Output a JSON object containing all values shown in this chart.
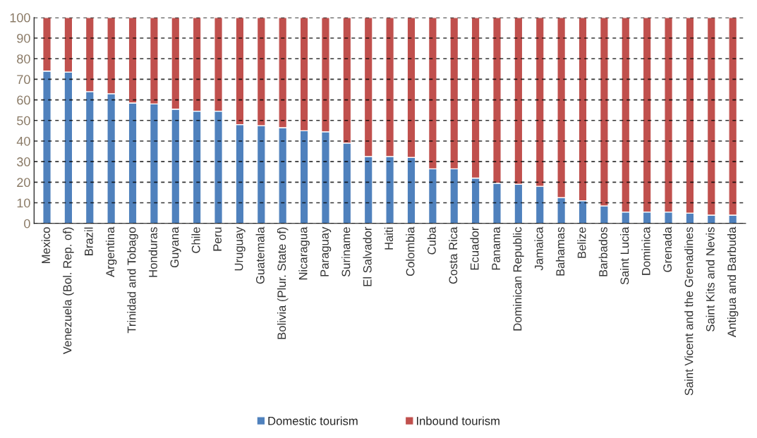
{
  "chart_data": {
    "type": "bar",
    "stacked": true,
    "categories": [
      "Mexico",
      "Venezuela (Bol. Rep. of)",
      "Brazil",
      "Argentina",
      "Trinidad and Tobago",
      "Honduras",
      "Guyana",
      "Chile",
      "Peru",
      "Uruguay",
      "Guatemala",
      "Bolivia (Plur. State of)",
      "Nicaragua",
      "Paraguay",
      "Suriname",
      "El Salvador",
      "Haiti",
      "Colombia",
      "Cuba",
      "Costa Rica",
      "Ecuador",
      "Panama",
      "Dominican Republic",
      "Jamaica",
      "Bahamas",
      "Belize",
      "Barbados",
      "Saint Lucia",
      "Dominica",
      "Grenada",
      "Saint Vicent and the Grenadines",
      "Saint Kits and Nevis",
      "Antigua and Barbuda"
    ],
    "series": [
      {
        "name": "Domestic tourism",
        "color": "#4f81bd",
        "values": [
          74,
          73.5,
          64,
          63,
          58.5,
          58,
          55.5,
          54.5,
          54.5,
          48,
          47.5,
          46.5,
          45,
          44.5,
          39,
          32.5,
          32.5,
          32,
          26.5,
          26.5,
          22,
          19.5,
          19,
          18,
          12.5,
          11,
          8.5,
          5.5,
          5.5,
          5.5,
          5,
          4,
          4
        ]
      },
      {
        "name": "Inbound tourism",
        "color": "#c0504d",
        "values": [
          26,
          26.5,
          36,
          37,
          41.5,
          42,
          44.5,
          45.5,
          45.5,
          52,
          52.5,
          53.5,
          55,
          55.5,
          61,
          67.5,
          67.5,
          68,
          73.5,
          73.5,
          78,
          80.5,
          81,
          82,
          87.5,
          89,
          91.5,
          94.5,
          94.5,
          94.5,
          95,
          96,
          96
        ]
      }
    ],
    "ylim": [
      0,
      100
    ],
    "yticks": [
      0,
      10,
      20,
      30,
      40,
      50,
      60,
      70,
      80,
      90,
      100
    ],
    "grid": "y",
    "legend": "bottom"
  }
}
